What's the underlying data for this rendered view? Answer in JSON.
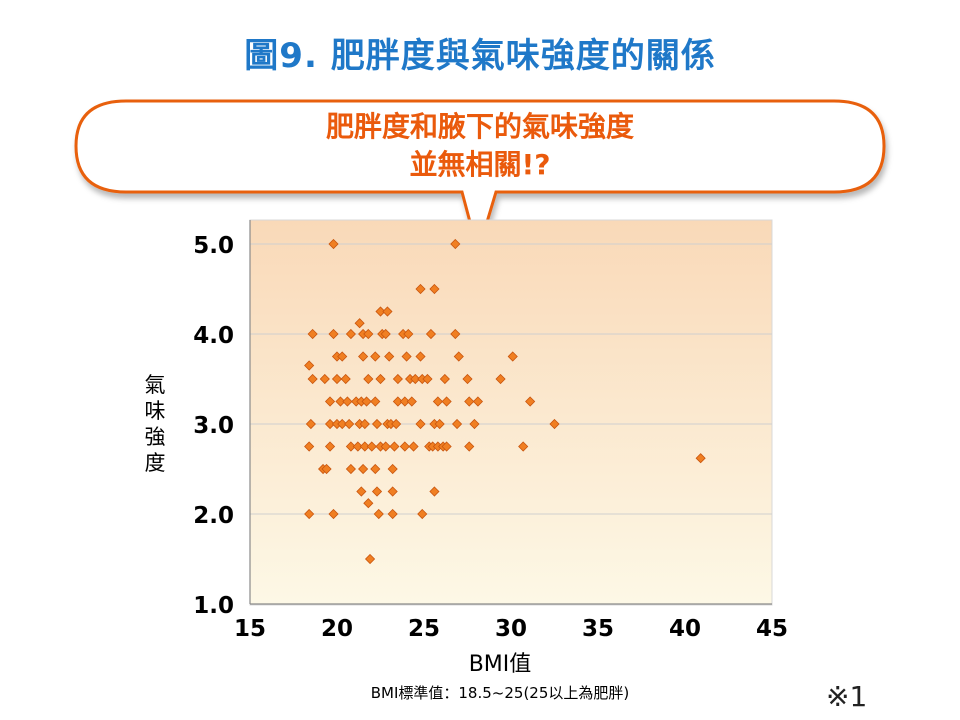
{
  "title": "圖9. 肥胖度與氣味強度的關係",
  "callout": {
    "line1": "肥胖度和腋下的氣味強度",
    "line2": "並無相關!?"
  },
  "colors": {
    "title": "#1f78c8",
    "callout_border": "#e8600c",
    "callout_text": "#ea5a0c",
    "marker": "#f07f22",
    "marker_border": "#c8550e",
    "plot_bg_top": "#f9d9b8",
    "plot_bg_bottom": "#fdf8e6"
  },
  "footnote": "BMI標準值：18.5~25(25以上為肥胖)",
  "reference_mark": "※1",
  "chart_data": {
    "type": "scatter",
    "title": "",
    "xlabel": "BMI值",
    "ylabel": "氣味強度",
    "xlim": [
      15,
      45
    ],
    "ylim": [
      1.0,
      5.0
    ],
    "x_ticks": [
      "15",
      "20",
      "25",
      "30",
      "35",
      "40",
      "45"
    ],
    "y_ticks": [
      "1.0",
      "2.0",
      "3.0",
      "4.0",
      "5.0"
    ],
    "x_tick_values": [
      15,
      20,
      25,
      30,
      35,
      40,
      45
    ],
    "y_tick_values": [
      1.0,
      2.0,
      3.0,
      4.0,
      5.0
    ],
    "grid": "horizontal",
    "legend": "none",
    "points": [
      [
        19.8,
        5.0
      ],
      [
        26.8,
        5.0
      ],
      [
        24.8,
        4.5
      ],
      [
        25.6,
        4.5
      ],
      [
        22.5,
        4.25
      ],
      [
        22.9,
        4.25
      ],
      [
        21.3,
        4.12
      ],
      [
        18.6,
        4.0
      ],
      [
        19.8,
        4.0
      ],
      [
        20.8,
        4.0
      ],
      [
        21.5,
        4.0
      ],
      [
        21.8,
        4.0
      ],
      [
        22.6,
        4.0
      ],
      [
        22.8,
        4.0
      ],
      [
        23.8,
        4.0
      ],
      [
        24.1,
        4.0
      ],
      [
        25.4,
        4.0
      ],
      [
        26.8,
        4.0
      ],
      [
        20.0,
        3.75
      ],
      [
        20.3,
        3.75
      ],
      [
        21.5,
        3.75
      ],
      [
        22.2,
        3.75
      ],
      [
        23.0,
        3.75
      ],
      [
        24.0,
        3.75
      ],
      [
        24.8,
        3.75
      ],
      [
        27.0,
        3.75
      ],
      [
        30.1,
        3.75
      ],
      [
        18.4,
        3.65
      ],
      [
        18.6,
        3.5
      ],
      [
        19.3,
        3.5
      ],
      [
        20.0,
        3.5
      ],
      [
        20.5,
        3.5
      ],
      [
        21.8,
        3.5
      ],
      [
        22.5,
        3.5
      ],
      [
        23.5,
        3.5
      ],
      [
        24.2,
        3.5
      ],
      [
        24.5,
        3.5
      ],
      [
        24.9,
        3.5
      ],
      [
        25.2,
        3.5
      ],
      [
        26.2,
        3.5
      ],
      [
        27.5,
        3.5
      ],
      [
        29.4,
        3.5
      ],
      [
        19.6,
        3.25
      ],
      [
        20.2,
        3.25
      ],
      [
        20.6,
        3.25
      ],
      [
        21.1,
        3.25
      ],
      [
        21.4,
        3.25
      ],
      [
        21.7,
        3.25
      ],
      [
        22.2,
        3.25
      ],
      [
        23.5,
        3.25
      ],
      [
        23.9,
        3.25
      ],
      [
        24.3,
        3.25
      ],
      [
        25.8,
        3.25
      ],
      [
        26.3,
        3.25
      ],
      [
        27.6,
        3.25
      ],
      [
        28.1,
        3.25
      ],
      [
        31.1,
        3.25
      ],
      [
        18.5,
        3.0
      ],
      [
        19.6,
        3.0
      ],
      [
        20.0,
        3.0
      ],
      [
        20.3,
        3.0
      ],
      [
        20.7,
        3.0
      ],
      [
        21.3,
        3.0
      ],
      [
        21.6,
        3.0
      ],
      [
        22.3,
        3.0
      ],
      [
        22.9,
        3.0
      ],
      [
        23.1,
        3.0
      ],
      [
        23.4,
        3.0
      ],
      [
        24.8,
        3.0
      ],
      [
        25.6,
        3.0
      ],
      [
        25.9,
        3.0
      ],
      [
        26.9,
        3.0
      ],
      [
        27.9,
        3.0
      ],
      [
        32.5,
        3.0
      ],
      [
        18.4,
        2.75
      ],
      [
        19.6,
        2.75
      ],
      [
        20.8,
        2.75
      ],
      [
        21.2,
        2.75
      ],
      [
        21.6,
        2.75
      ],
      [
        22.0,
        2.75
      ],
      [
        22.5,
        2.75
      ],
      [
        22.8,
        2.75
      ],
      [
        23.3,
        2.75
      ],
      [
        23.9,
        2.75
      ],
      [
        24.4,
        2.75
      ],
      [
        25.3,
        2.75
      ],
      [
        25.5,
        2.75
      ],
      [
        25.8,
        2.75
      ],
      [
        26.1,
        2.75
      ],
      [
        26.3,
        2.75
      ],
      [
        27.6,
        2.75
      ],
      [
        30.7,
        2.75
      ],
      [
        40.9,
        2.62
      ],
      [
        19.2,
        2.5
      ],
      [
        19.4,
        2.5
      ],
      [
        20.8,
        2.5
      ],
      [
        21.5,
        2.5
      ],
      [
        22.2,
        2.5
      ],
      [
        23.2,
        2.5
      ],
      [
        21.4,
        2.25
      ],
      [
        22.3,
        2.25
      ],
      [
        23.2,
        2.25
      ],
      [
        25.6,
        2.25
      ],
      [
        21.8,
        2.12
      ],
      [
        18.4,
        2.0
      ],
      [
        19.8,
        2.0
      ],
      [
        22.4,
        2.0
      ],
      [
        23.2,
        2.0
      ],
      [
        24.9,
        2.0
      ],
      [
        21.9,
        1.5
      ]
    ]
  }
}
